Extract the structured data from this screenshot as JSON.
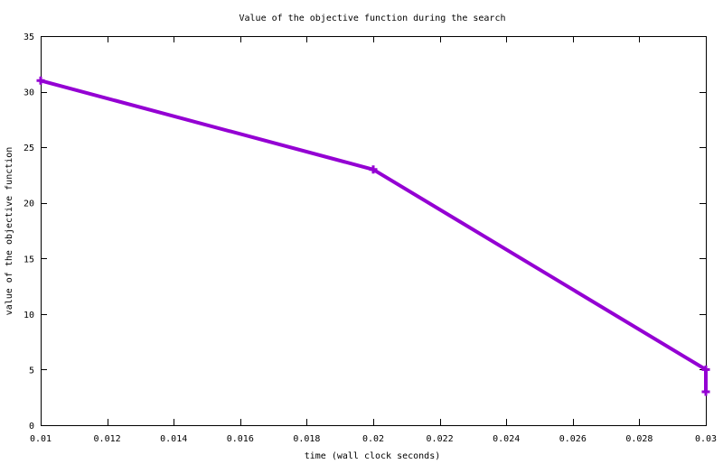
{
  "chart_data": {
    "type": "line",
    "title": "Value of the objective function during the search",
    "xlabel": "time (wall clock seconds)",
    "ylabel": "value of the objective function",
    "xlim": [
      0.01,
      0.03
    ],
    "ylim": [
      0,
      35
    ],
    "x_ticks": [
      0.01,
      0.012,
      0.014,
      0.016,
      0.018,
      0.02,
      0.022,
      0.024,
      0.026,
      0.028,
      0.03
    ],
    "x_tick_labels": [
      "0.01",
      "0.012",
      "0.014",
      "0.016",
      "0.018",
      "0.02",
      "0.022",
      "0.024",
      "0.026",
      "0.028",
      "0.03"
    ],
    "y_ticks": [
      0,
      5,
      10,
      15,
      20,
      25,
      30,
      35
    ],
    "y_tick_labels": [
      "0",
      "5",
      "10",
      "15",
      "20",
      "25",
      "30",
      "35"
    ],
    "grid": false,
    "series": [
      {
        "x": [
          0.01,
          0.02,
          0.03,
          0.03
        ],
        "y": [
          31,
          23,
          5,
          3
        ],
        "color": "#9400d3",
        "marker": "plus"
      }
    ]
  }
}
